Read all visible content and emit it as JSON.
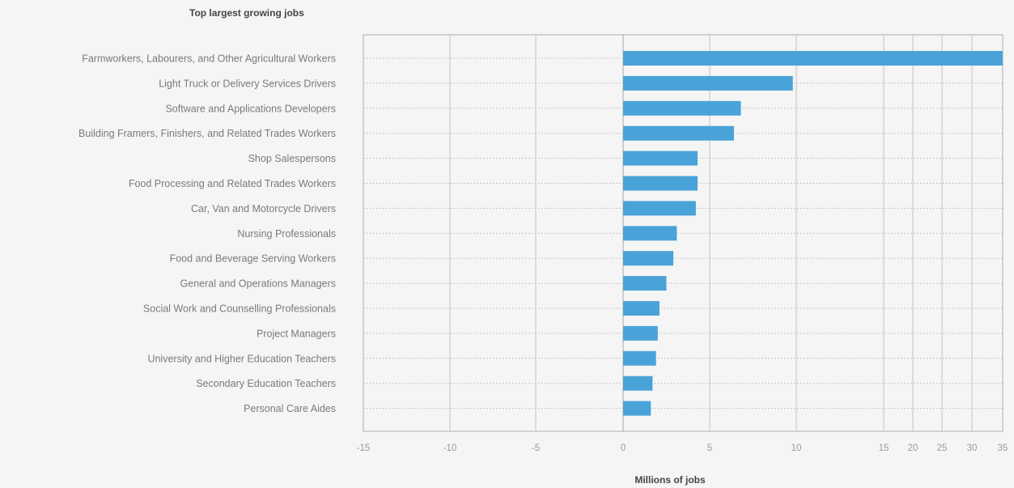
{
  "chart_data": {
    "type": "bar",
    "orientation": "horizontal",
    "title": "Top largest growing jobs",
    "xlabel": "Millions of jobs",
    "ylabel": "",
    "x_scale": "piecewise-linear (compressed above 10)",
    "xlim": [
      -15,
      35
    ],
    "x_ticks": [
      -15,
      -10,
      -5,
      0,
      5,
      10,
      15,
      20,
      25,
      30,
      35
    ],
    "grid": {
      "vertical": true,
      "horizontal": "dotted"
    },
    "legend": "none",
    "bar_color": "#4aa3d8",
    "categories": [
      "Farmworkers, Labourers, and Other Agricultural Workers",
      "Light Truck or Delivery Services Drivers",
      "Software and Applications Developers",
      "Building Framers, Finishers, and Related Trades Workers",
      "Shop Salespersons",
      "Food Processing and Related Trades Workers",
      "Car, Van and Motorcycle Drivers",
      "Nursing Professionals",
      "Food and Beverage Serving Workers",
      "General and Operations Managers",
      "Social Work and Counselling Professionals",
      "Project Managers",
      "University and Higher Education Teachers",
      "Secondary Education Teachers",
      "Personal Care Aides"
    ],
    "values": [
      35,
      9.8,
      6.8,
      6.4,
      4.3,
      4.3,
      4.2,
      3.1,
      2.9,
      2.5,
      2.1,
      2.0,
      1.9,
      1.7,
      1.6
    ]
  }
}
